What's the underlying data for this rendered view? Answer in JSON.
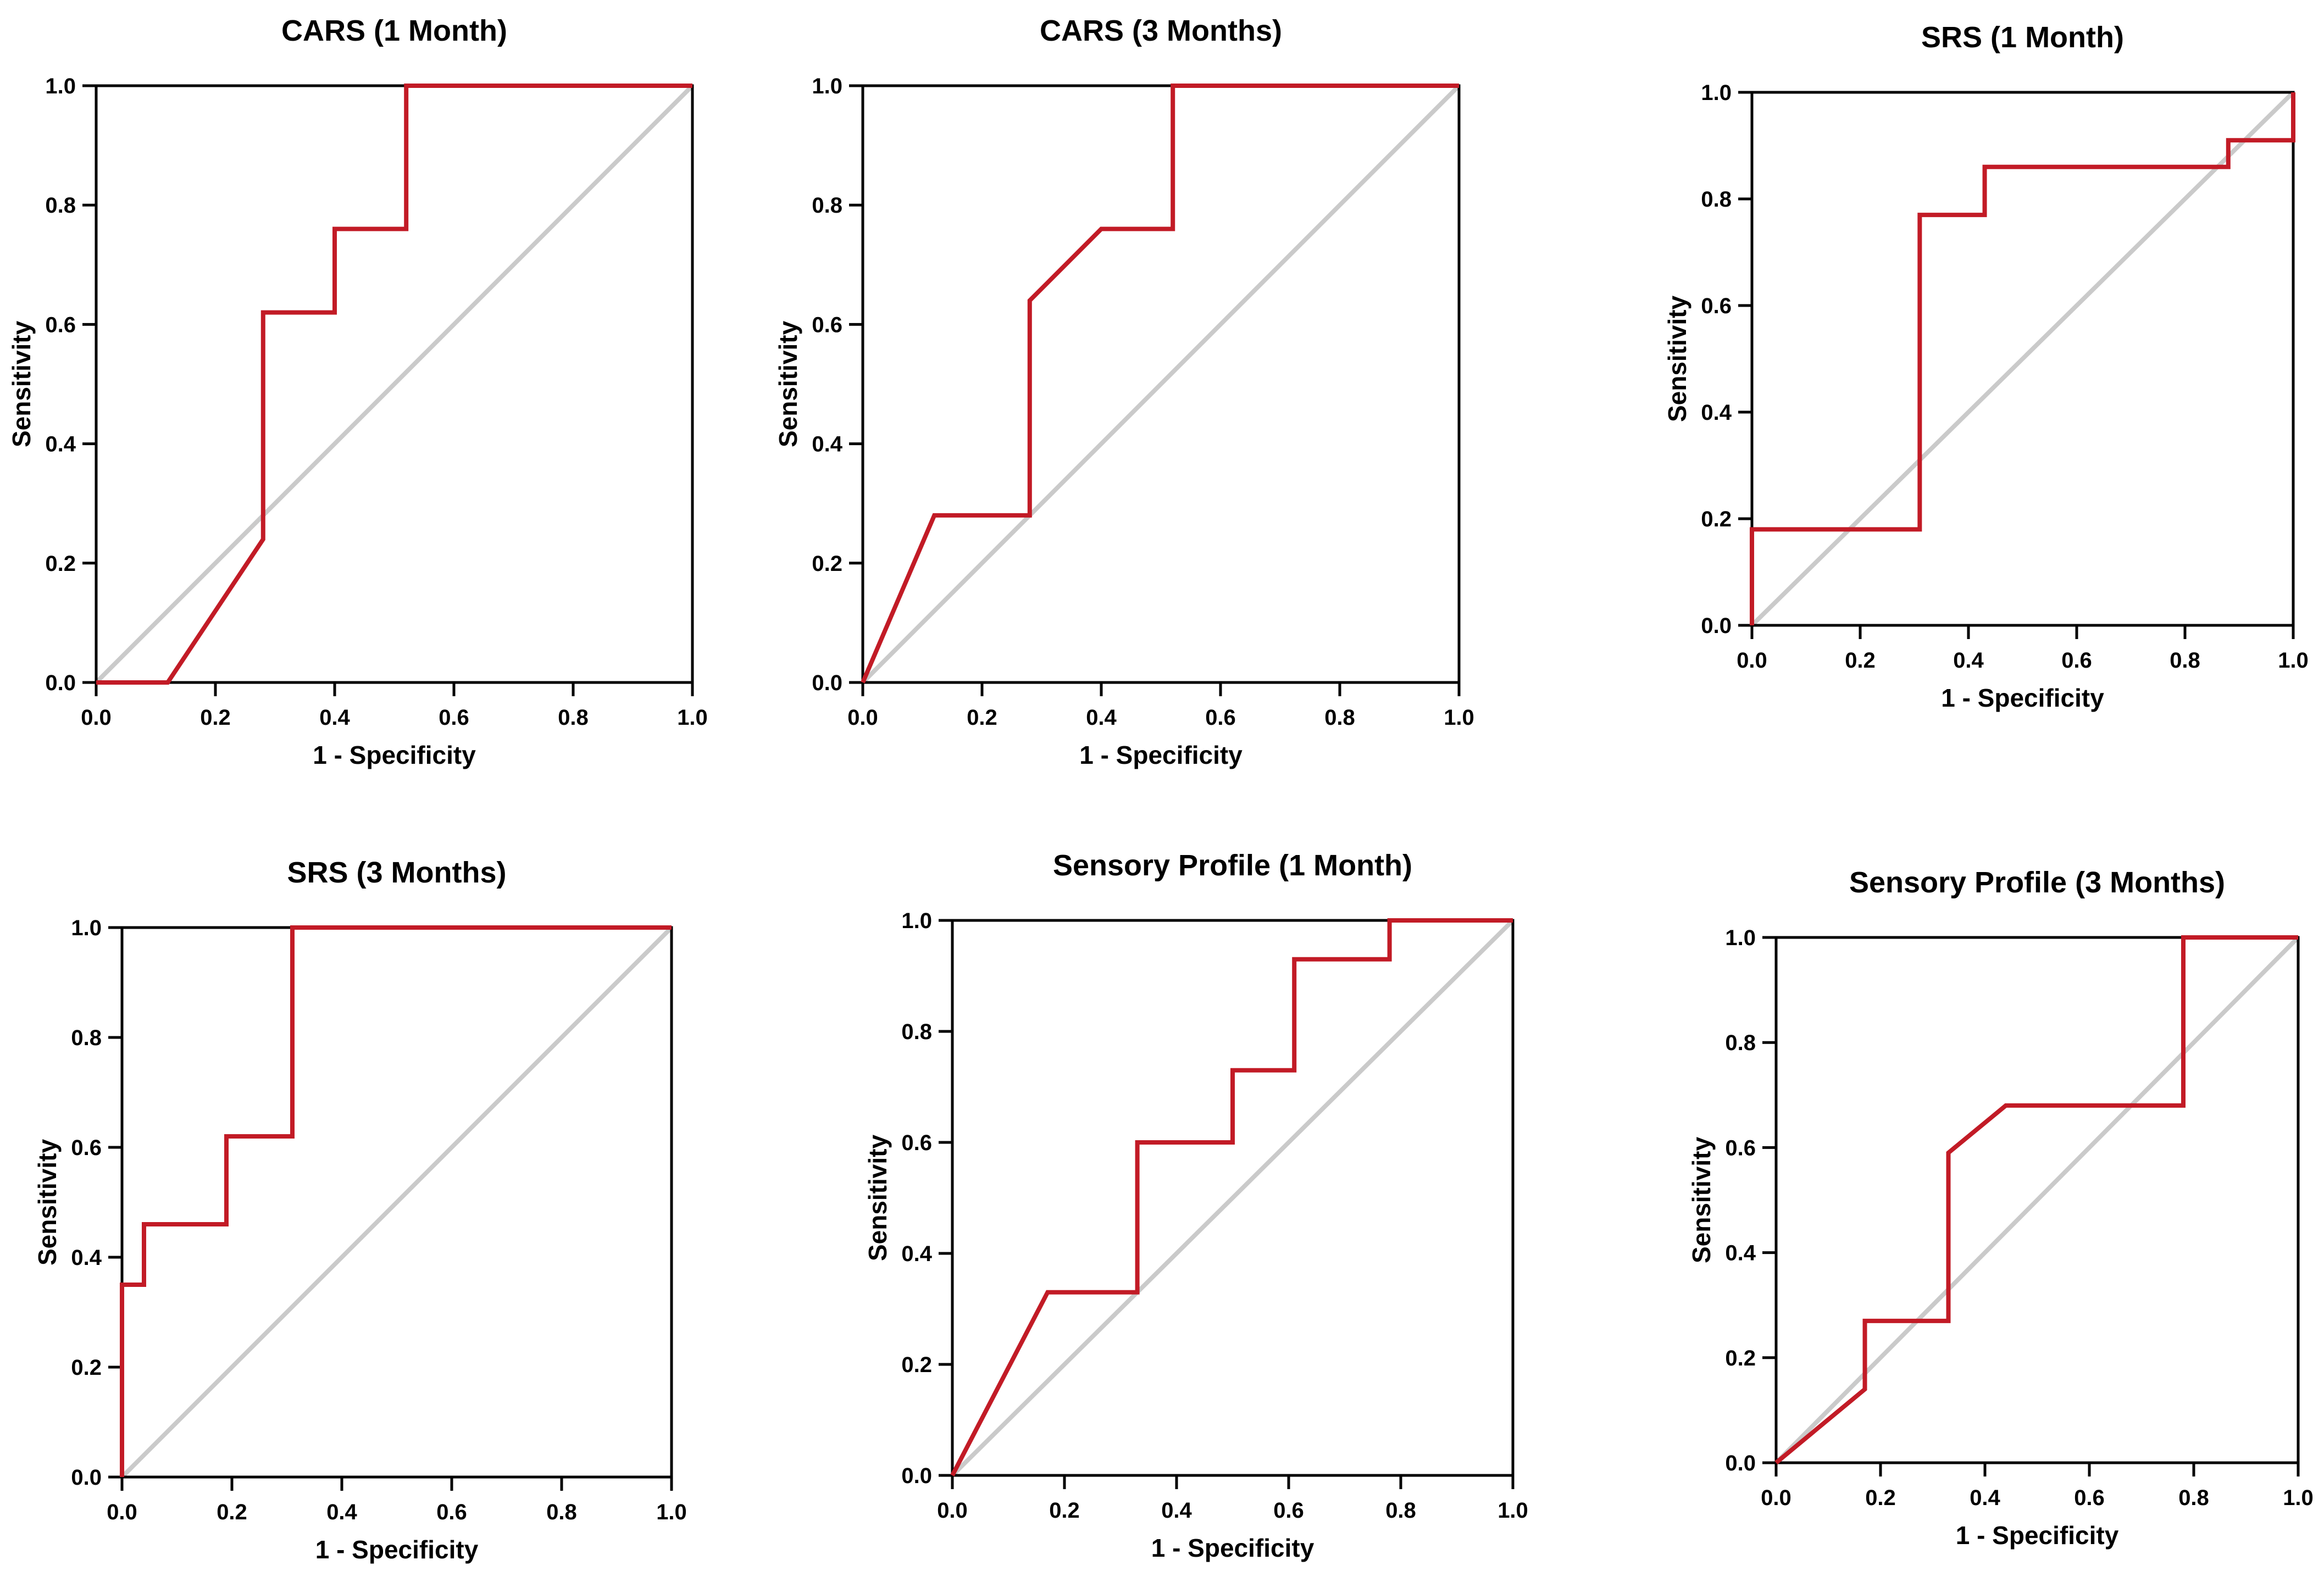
{
  "figure": {
    "type": "roc-curve-panel",
    "rows": 2,
    "cols": 3,
    "background": "#ffffff"
  },
  "styles": {
    "curve_color": "#c21b26",
    "reference_color": "#cacaca",
    "frame_color": "#000000",
    "tick_color": "#000000",
    "text_color": "#000000"
  },
  "chart_data": [
    {
      "type": "line",
      "title": "CARS (1 Month)",
      "xlabel": "1 - Specificity",
      "ylabel": "Sensitivity",
      "xlim": [
        0,
        1
      ],
      "ylim": [
        0,
        1
      ],
      "xticks": [
        0.0,
        0.2,
        0.4,
        0.6,
        0.8,
        1.0
      ],
      "yticks": [
        0.0,
        0.2,
        0.4,
        0.6,
        0.8,
        1.0
      ],
      "xtick_labels": [
        "0.0",
        "0.2",
        "0.4",
        "0.6",
        "0.8",
        "1.0"
      ],
      "ytick_labels": [
        "0.0",
        "0.2",
        "0.4",
        "0.6",
        "0.8",
        "1.0"
      ],
      "grid": false,
      "legend": false,
      "series": [
        {
          "name": "ROC curve",
          "color": "#c21b26",
          "points": [
            [
              0,
              0
            ],
            [
              0.12,
              0
            ],
            [
              0.28,
              0.24
            ],
            [
              0.28,
              0.62
            ],
            [
              0.4,
              0.62
            ],
            [
              0.4,
              0.76
            ],
            [
              0.52,
              0.76
            ],
            [
              0.52,
              1
            ],
            [
              1,
              1
            ]
          ]
        },
        {
          "name": "Reference line",
          "color": "#cacaca",
          "points": [
            [
              0,
              0
            ],
            [
              1,
              1
            ]
          ]
        }
      ]
    },
    {
      "type": "line",
      "title": "CARS (3 Months)",
      "xlabel": "1 - Specificity",
      "ylabel": "Sensitivity",
      "xlim": [
        0,
        1
      ],
      "ylim": [
        0,
        1
      ],
      "xticks": [
        0.0,
        0.2,
        0.4,
        0.6,
        0.8,
        1.0
      ],
      "yticks": [
        0.0,
        0.2,
        0.4,
        0.6,
        0.8,
        1.0
      ],
      "xtick_labels": [
        "0.0",
        "0.2",
        "0.4",
        "0.6",
        "0.8",
        "1.0"
      ],
      "ytick_labels": [
        "0.0",
        "0.2",
        "0.4",
        "0.6",
        "0.8",
        "1.0"
      ],
      "grid": false,
      "legend": false,
      "series": [
        {
          "name": "ROC curve",
          "color": "#c21b26",
          "points": [
            [
              0,
              0
            ],
            [
              0.12,
              0.28
            ],
            [
              0.28,
              0.28
            ],
            [
              0.28,
              0.64
            ],
            [
              0.4,
              0.76
            ],
            [
              0.52,
              0.76
            ],
            [
              0.52,
              1
            ],
            [
              1,
              1
            ]
          ]
        },
        {
          "name": "Reference line",
          "color": "#cacaca",
          "points": [
            [
              0,
              0
            ],
            [
              1,
              1
            ]
          ]
        }
      ]
    },
    {
      "type": "line",
      "title": "SRS (1 Month)",
      "xlabel": "1 - Specificity",
      "ylabel": "Sensitivity",
      "xlim": [
        0,
        1
      ],
      "ylim": [
        0,
        1
      ],
      "xticks": [
        0.0,
        0.2,
        0.4,
        0.6,
        0.8,
        1.0
      ],
      "yticks": [
        0.0,
        0.2,
        0.4,
        0.6,
        0.8,
        1.0
      ],
      "xtick_labels": [
        "0.0",
        "0.2",
        "0.4",
        "0.6",
        "0.8",
        "1.0"
      ],
      "ytick_labels": [
        "0.0",
        "0.2",
        "0.4",
        "0.6",
        "0.8",
        "1.0"
      ],
      "grid": false,
      "legend": false,
      "series": [
        {
          "name": "ROC curve",
          "color": "#c21b26",
          "points": [
            [
              0,
              0
            ],
            [
              0,
              0.18
            ],
            [
              0.31,
              0.18
            ],
            [
              0.31,
              0.77
            ],
            [
              0.43,
              0.77
            ],
            [
              0.43,
              0.86
            ],
            [
              0.88,
              0.86
            ],
            [
              0.88,
              0.91
            ],
            [
              1,
              0.91
            ],
            [
              1,
              1
            ]
          ]
        },
        {
          "name": "Reference line",
          "color": "#cacaca",
          "points": [
            [
              0,
              0
            ],
            [
              1,
              1
            ]
          ]
        }
      ]
    },
    {
      "type": "line",
      "title": "SRS (3 Months)",
      "xlabel": "1 - Specificity",
      "ylabel": "Sensitivity",
      "xlim": [
        0,
        1
      ],
      "ylim": [
        0,
        1
      ],
      "xticks": [
        0.0,
        0.2,
        0.4,
        0.6,
        0.8,
        1.0
      ],
      "yticks": [
        0.0,
        0.2,
        0.4,
        0.6,
        0.8,
        1.0
      ],
      "xtick_labels": [
        "0.0",
        "0.2",
        "0.4",
        "0.6",
        "0.8",
        "1.0"
      ],
      "ytick_labels": [
        "0.0",
        "0.2",
        "0.4",
        "0.6",
        "0.8",
        "1.0"
      ],
      "grid": false,
      "legend": false,
      "series": [
        {
          "name": "ROC curve",
          "color": "#c21b26",
          "points": [
            [
              0,
              0
            ],
            [
              0,
              0.35
            ],
            [
              0.04,
              0.35
            ],
            [
              0.04,
              0.46
            ],
            [
              0.19,
              0.46
            ],
            [
              0.19,
              0.62
            ],
            [
              0.31,
              0.62
            ],
            [
              0.31,
              1
            ],
            [
              1,
              1
            ]
          ]
        },
        {
          "name": "Reference line",
          "color": "#cacaca",
          "points": [
            [
              0,
              0
            ],
            [
              1,
              1
            ]
          ]
        }
      ]
    },
    {
      "type": "line",
      "title": "Sensory Profile (1 Month)",
      "xlabel": "1 - Specificity",
      "ylabel": "Sensitivity",
      "xlim": [
        0,
        1
      ],
      "ylim": [
        0,
        1
      ],
      "xticks": [
        0.0,
        0.2,
        0.4,
        0.6,
        0.8,
        1.0
      ],
      "yticks": [
        0.0,
        0.2,
        0.4,
        0.6,
        0.8,
        1.0
      ],
      "xtick_labels": [
        "0.0",
        "0.2",
        "0.4",
        "0.6",
        "0.8",
        "1.0"
      ],
      "ytick_labels": [
        "0.0",
        "0.2",
        "0.4",
        "0.6",
        "0.8",
        "1.0"
      ],
      "grid": false,
      "legend": false,
      "series": [
        {
          "name": "ROC curve",
          "color": "#c21b26",
          "points": [
            [
              0,
              0
            ],
            [
              0.17,
              0.33
            ],
            [
              0.33,
              0.33
            ],
            [
              0.33,
              0.6
            ],
            [
              0.5,
              0.6
            ],
            [
              0.5,
              0.73
            ],
            [
              0.61,
              0.73
            ],
            [
              0.61,
              0.93
            ],
            [
              0.78,
              0.93
            ],
            [
              0.78,
              1
            ],
            [
              1,
              1
            ]
          ]
        },
        {
          "name": "Reference line",
          "color": "#cacaca",
          "points": [
            [
              0,
              0
            ],
            [
              1,
              1
            ]
          ]
        }
      ]
    },
    {
      "type": "line",
      "title": "Sensory Profile (3 Months)",
      "xlabel": "1 - Specificity",
      "ylabel": "Sensitivity",
      "xlim": [
        0,
        1
      ],
      "ylim": [
        0,
        1
      ],
      "xticks": [
        0.0,
        0.2,
        0.4,
        0.6,
        0.8,
        1.0
      ],
      "yticks": [
        0.0,
        0.2,
        0.4,
        0.6,
        0.8,
        1.0
      ],
      "xtick_labels": [
        "0.0",
        "0.2",
        "0.4",
        "0.6",
        "0.8",
        "1.0"
      ],
      "ytick_labels": [
        "0.0",
        "0.2",
        "0.4",
        "0.6",
        "0.8",
        "1.0"
      ],
      "grid": false,
      "legend": false,
      "series": [
        {
          "name": "ROC curve",
          "color": "#c21b26",
          "points": [
            [
              0,
              0
            ],
            [
              0.17,
              0.14
            ],
            [
              0.17,
              0.27
            ],
            [
              0.33,
              0.27
            ],
            [
              0.33,
              0.59
            ],
            [
              0.44,
              0.68
            ],
            [
              0.78,
              0.68
            ],
            [
              0.78,
              1
            ],
            [
              1,
              1
            ]
          ]
        },
        {
          "name": "Reference line",
          "color": "#cacaca",
          "points": [
            [
              0,
              0
            ],
            [
              1,
              1
            ]
          ]
        }
      ]
    }
  ]
}
